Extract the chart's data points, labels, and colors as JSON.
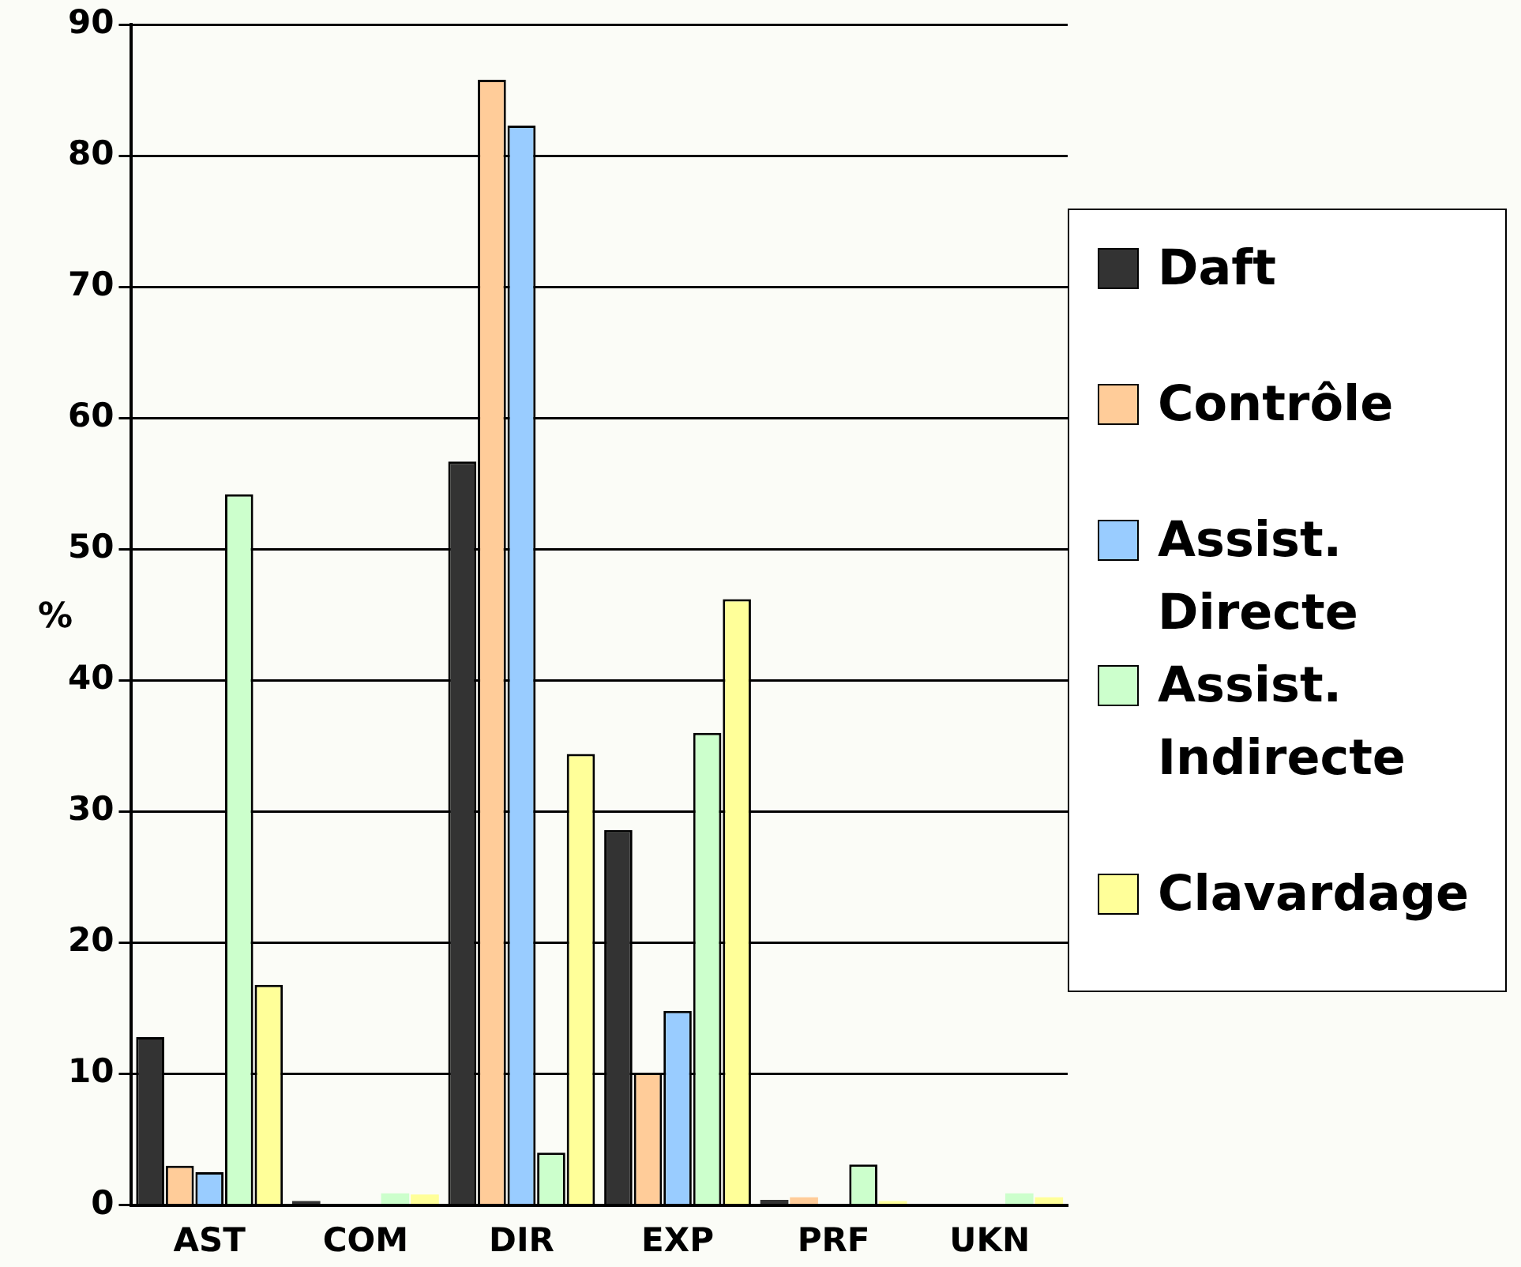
{
  "chart_data": {
    "type": "bar",
    "ylabel": "%",
    "categories": [
      "AST",
      "COM",
      "DIR",
      "EXP",
      "PRF",
      "UKN"
    ],
    "series": [
      {
        "name": "Daft",
        "color": "#333333",
        "values": [
          12.8,
          0.3,
          56.7,
          28.6,
          0.4,
          0.1
        ]
      },
      {
        "name": "Contrôle",
        "color": "#ffcc99",
        "values": [
          3,
          0,
          85.8,
          10.1,
          0.6,
          0
        ]
      },
      {
        "name": "Assist. Directe",
        "color": "#99ccff",
        "values": [
          2.5,
          0,
          82.3,
          14.8,
          0,
          0
        ]
      },
      {
        "name": "Assist. Indirecte",
        "color": "#ccffcc",
        "values": [
          54.2,
          0.9,
          4,
          36,
          3.1,
          0.9
        ]
      },
      {
        "name": "Clavardage",
        "color": "#ffff99",
        "values": [
          16.8,
          0.8,
          34.4,
          46.2,
          0.3,
          0.6
        ]
      }
    ],
    "ylim": [
      0,
      90
    ],
    "yticks": [
      0,
      10,
      20,
      30,
      40,
      50,
      60,
      70,
      80,
      90
    ],
    "grid": "y",
    "legend": "right"
  }
}
